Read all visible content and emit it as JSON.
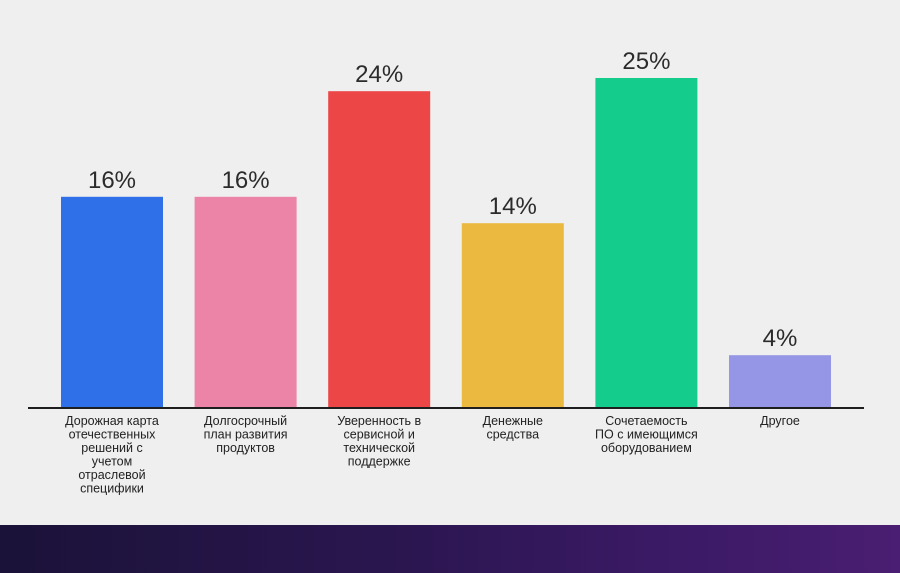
{
  "chart_data": {
    "type": "bar",
    "categories": [
      "Дорожная карта отечественных решений с учетом отраслевой специфики",
      "Долгосрочный план развития продуктов",
      "Уверенность в сервисной и технической поддержке",
      "Денежные средства",
      "Сочетаемость ПО с имеющимся оборудованием",
      "Другое"
    ],
    "category_lines": [
      [
        "Дорожная карта",
        "отечественных",
        "решений с",
        "учетом",
        "отраслевой",
        "специфики"
      ],
      [
        "Долгосрочный",
        "план развития",
        "продуктов"
      ],
      [
        "Уверенность в",
        "сервисной и",
        "технической",
        "поддержке"
      ],
      [
        "Денежные",
        "средства"
      ],
      [
        "Сочетаемость",
        "ПО с имеющимся",
        "оборудованием"
      ],
      [
        "Другое"
      ]
    ],
    "values": [
      16,
      16,
      24,
      14,
      25,
      4
    ],
    "value_labels": [
      "16%",
      "16%",
      "24%",
      "14%",
      "25%",
      "4%"
    ],
    "colors": [
      "#2f6fe8",
      "#ec84a7",
      "#ec4646",
      "#ebb93f",
      "#14cd8d",
      "#9696e6"
    ],
    "title": "",
    "xlabel": "",
    "ylabel": "",
    "ylim": [
      0,
      25
    ],
    "grid": false,
    "legend": "none"
  }
}
